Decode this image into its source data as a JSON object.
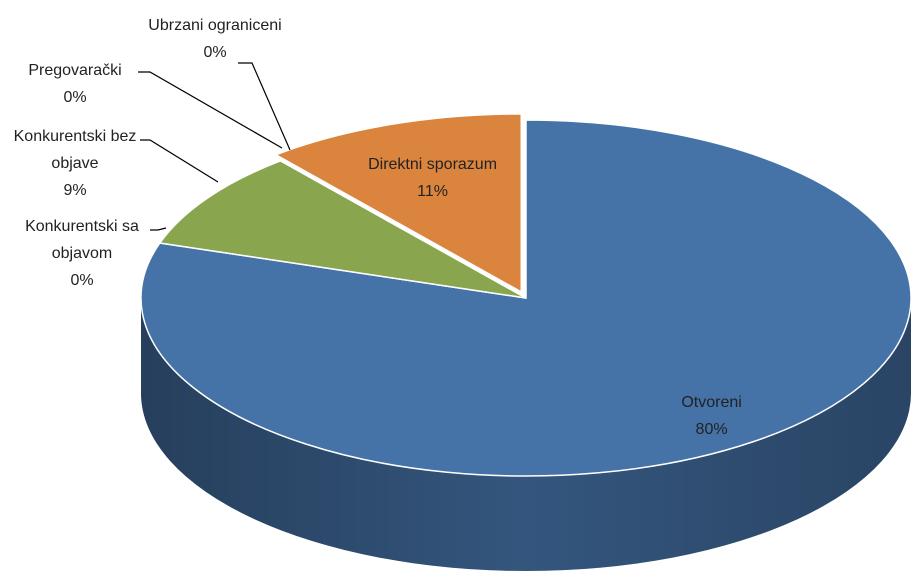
{
  "chart_data": {
    "type": "pie",
    "categories": [
      "Otvoreni",
      "Konkurentski sa objavom",
      "Konkurentski bez objave",
      "Pregovarački",
      "Ubrzani ograniceni",
      "Direktni sporazum"
    ],
    "values": [
      80,
      0,
      9,
      0,
      0,
      11
    ],
    "value_labels": [
      "80%",
      "0%",
      "9%",
      "0%",
      "0%",
      "11%"
    ],
    "colors": [
      "#4572a7",
      "#4e6b2a",
      "#89a54e",
      "#80699b",
      "#3d96ae",
      "#db843d"
    ]
  }
}
